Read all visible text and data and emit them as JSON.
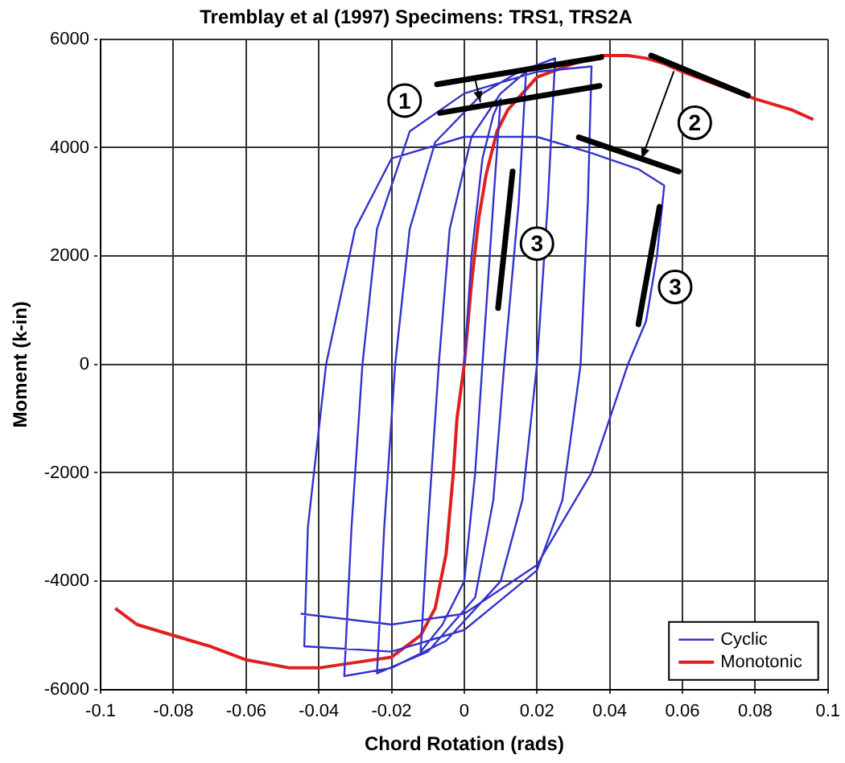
{
  "chart_data": {
    "type": "line",
    "title": "Tremblay et al (1997) Specimens: TRS1, TRS2A",
    "xlabel": "Chord Rotation (rads)",
    "ylabel": "Moment (k-in)",
    "xlim": [
      -0.1,
      0.1
    ],
    "xticks": [
      -0.1,
      -0.08,
      -0.06,
      -0.04,
      -0.02,
      0,
      0.02,
      0.04,
      0.06,
      0.08,
      0.1
    ],
    "ylim": [
      -6000,
      6000
    ],
    "yticks": [
      -6000,
      -4000,
      -2000,
      0,
      2000,
      4000,
      6000
    ],
    "grid": true,
    "legend": "bottom right",
    "marker": "none",
    "line_style": "solid",
    "annotations": [
      {
        "text": "1",
        "x": -0.0164,
        "y": 4870
      },
      {
        "text": "2",
        "x": 0.0634,
        "y": 4460
      },
      {
        "text": "3",
        "x": 0.02,
        "y": 2230
      },
      {
        "text": "3",
        "x": 0.058,
        "y": 1430
      }
    ],
    "series": [
      {
        "name": "Cyclic",
        "color": "#3333cc",
        "x": [
          0,
          0.002,
          0.005,
          0.008,
          0.01,
          0.008,
          0.005,
          0.003,
          0,
          -0.006,
          -0.012,
          -0.01,
          -0.007,
          -0.004,
          0.002,
          0.01,
          0.017,
          0.015,
          0.011,
          0.008,
          0.003,
          -0.01,
          -0.024,
          -0.022,
          -0.019,
          -0.015,
          -0.008,
          0.005,
          0.015,
          0.025,
          0.023,
          0.02,
          0.016,
          0.01,
          -0.005,
          -0.02,
          -0.033,
          -0.031,
          -0.028,
          -0.024,
          -0.015,
          0,
          0.02,
          0.035,
          0.034,
          0.032,
          0.027,
          0.02,
          0,
          -0.02,
          -0.044,
          -0.043,
          -0.038,
          -0.03,
          -0.02,
          0,
          0.02,
          0.035,
          0.048,
          0.055,
          0.053,
          0.05,
          0.045,
          0.035,
          0.02,
          0,
          -0.02,
          -0.045
        ],
        "values": [
          0,
          2000,
          3800,
          4600,
          4900,
          3000,
          0,
          -2000,
          -4000,
          -4800,
          -5300,
          -3000,
          0,
          2500,
          4200,
          5000,
          5400,
          3000,
          0,
          -2500,
          -4300,
          -5300,
          -5700,
          -3000,
          0,
          2500,
          4100,
          5000,
          5400,
          5650,
          3000,
          0,
          -2500,
          -4000,
          -5100,
          -5600,
          -5750,
          -3000,
          0,
          2500,
          4300,
          5000,
          5400,
          5500,
          3000,
          0,
          -2500,
          -3800,
          -4900,
          -5300,
          -5200,
          -3000,
          0,
          2500,
          3800,
          4200,
          4200,
          3900,
          3600,
          3300,
          2000,
          800,
          0,
          -2000,
          -3700,
          -4600,
          -4800,
          -4600
        ]
      },
      {
        "name": "Monotonic",
        "color": "#e02020",
        "x": [
          -0.096,
          -0.09,
          -0.08,
          -0.07,
          -0.06,
          -0.048,
          -0.04,
          -0.03,
          -0.02,
          -0.012,
          -0.008,
          -0.005,
          -0.003,
          -0.002,
          0,
          0.002,
          0.004,
          0.006,
          0.009,
          0.012,
          0.02,
          0.03,
          0.038,
          0.045,
          0.05,
          0.055,
          0.06,
          0.07,
          0.08,
          0.09,
          0.096
        ],
        "values": [
          -4500,
          -4800,
          -5000,
          -5200,
          -5450,
          -5600,
          -5600,
          -5500,
          -5400,
          -5000,
          -4500,
          -3500,
          -2000,
          -1000,
          0,
          1500,
          2700,
          3500,
          4300,
          4700,
          5300,
          5550,
          5700,
          5700,
          5650,
          5550,
          5400,
          5150,
          4900,
          4700,
          4520
        ]
      }
    ]
  }
}
